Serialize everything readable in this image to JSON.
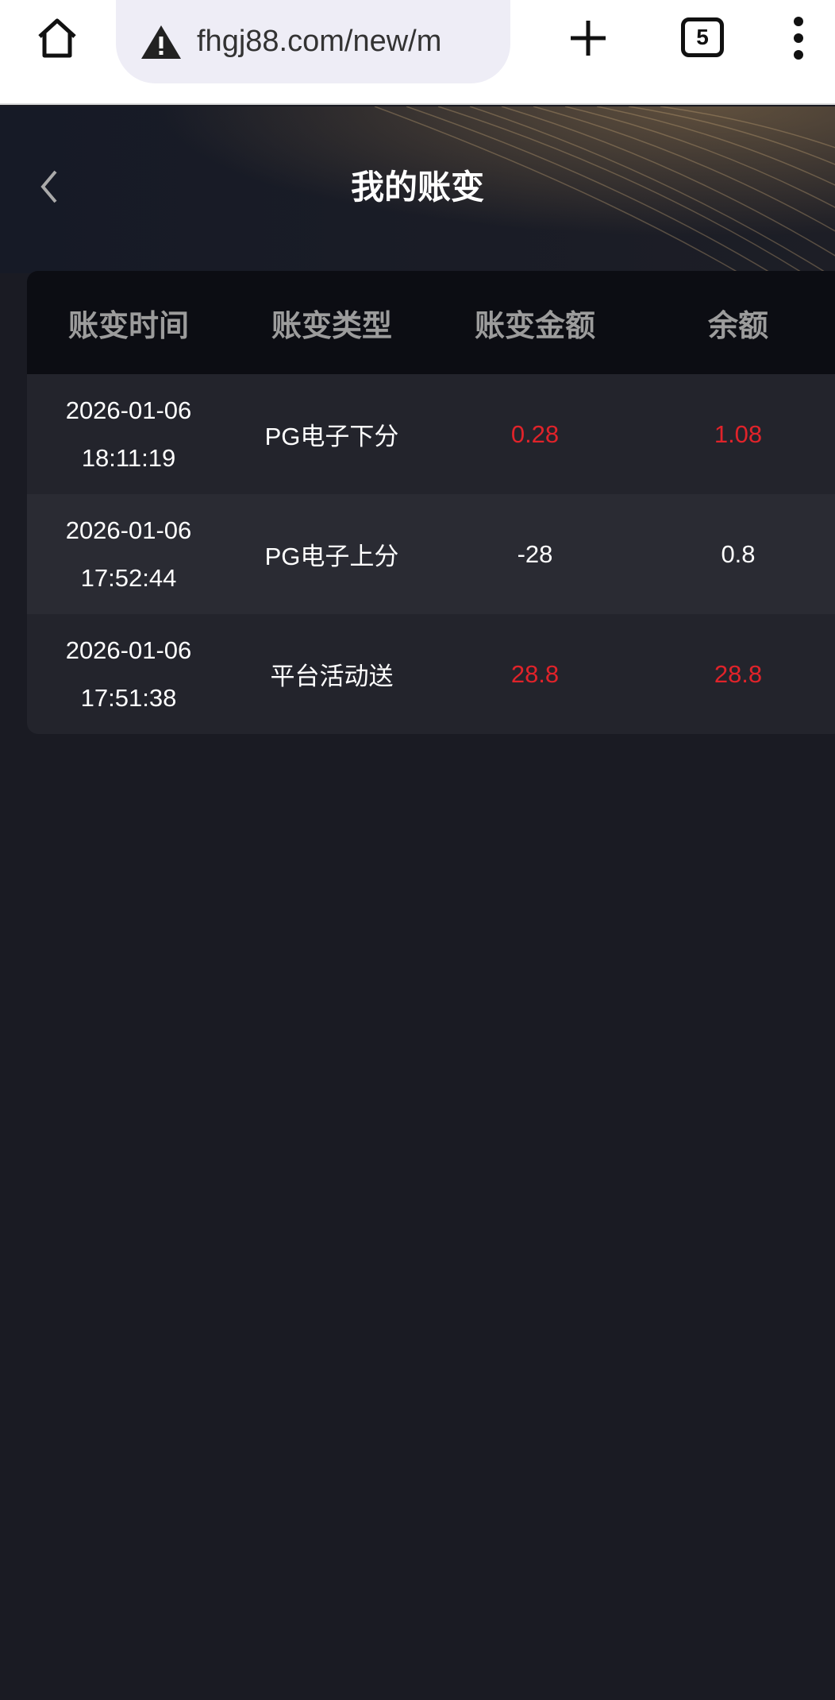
{
  "browser": {
    "url": "fhgj88.com/new/m",
    "tab_count": "5",
    "icons": [
      "home-icon",
      "warning-icon",
      "plus-icon",
      "tabs-icon",
      "menu-icon"
    ]
  },
  "header": {
    "title": "我的账变"
  },
  "table": {
    "columns": [
      "账变时间",
      "账变类型",
      "账变金额",
      "余额"
    ],
    "rows": [
      {
        "date": "2026-01-06",
        "time": "18:11:19",
        "type": "PG电子下分",
        "amount": "0.28",
        "balance": "1.08",
        "highlight": true
      },
      {
        "date": "2026-01-06",
        "time": "17:52:44",
        "type": "PG电子上分",
        "amount": "-28",
        "balance": "0.8",
        "highlight": false
      },
      {
        "date": "2026-01-06",
        "time": "17:51:38",
        "type": "平台活动送",
        "amount": "28.8",
        "balance": "28.8",
        "highlight": true
      }
    ]
  },
  "colors": {
    "positive": "#e0232a",
    "background": "#1a1b23"
  }
}
